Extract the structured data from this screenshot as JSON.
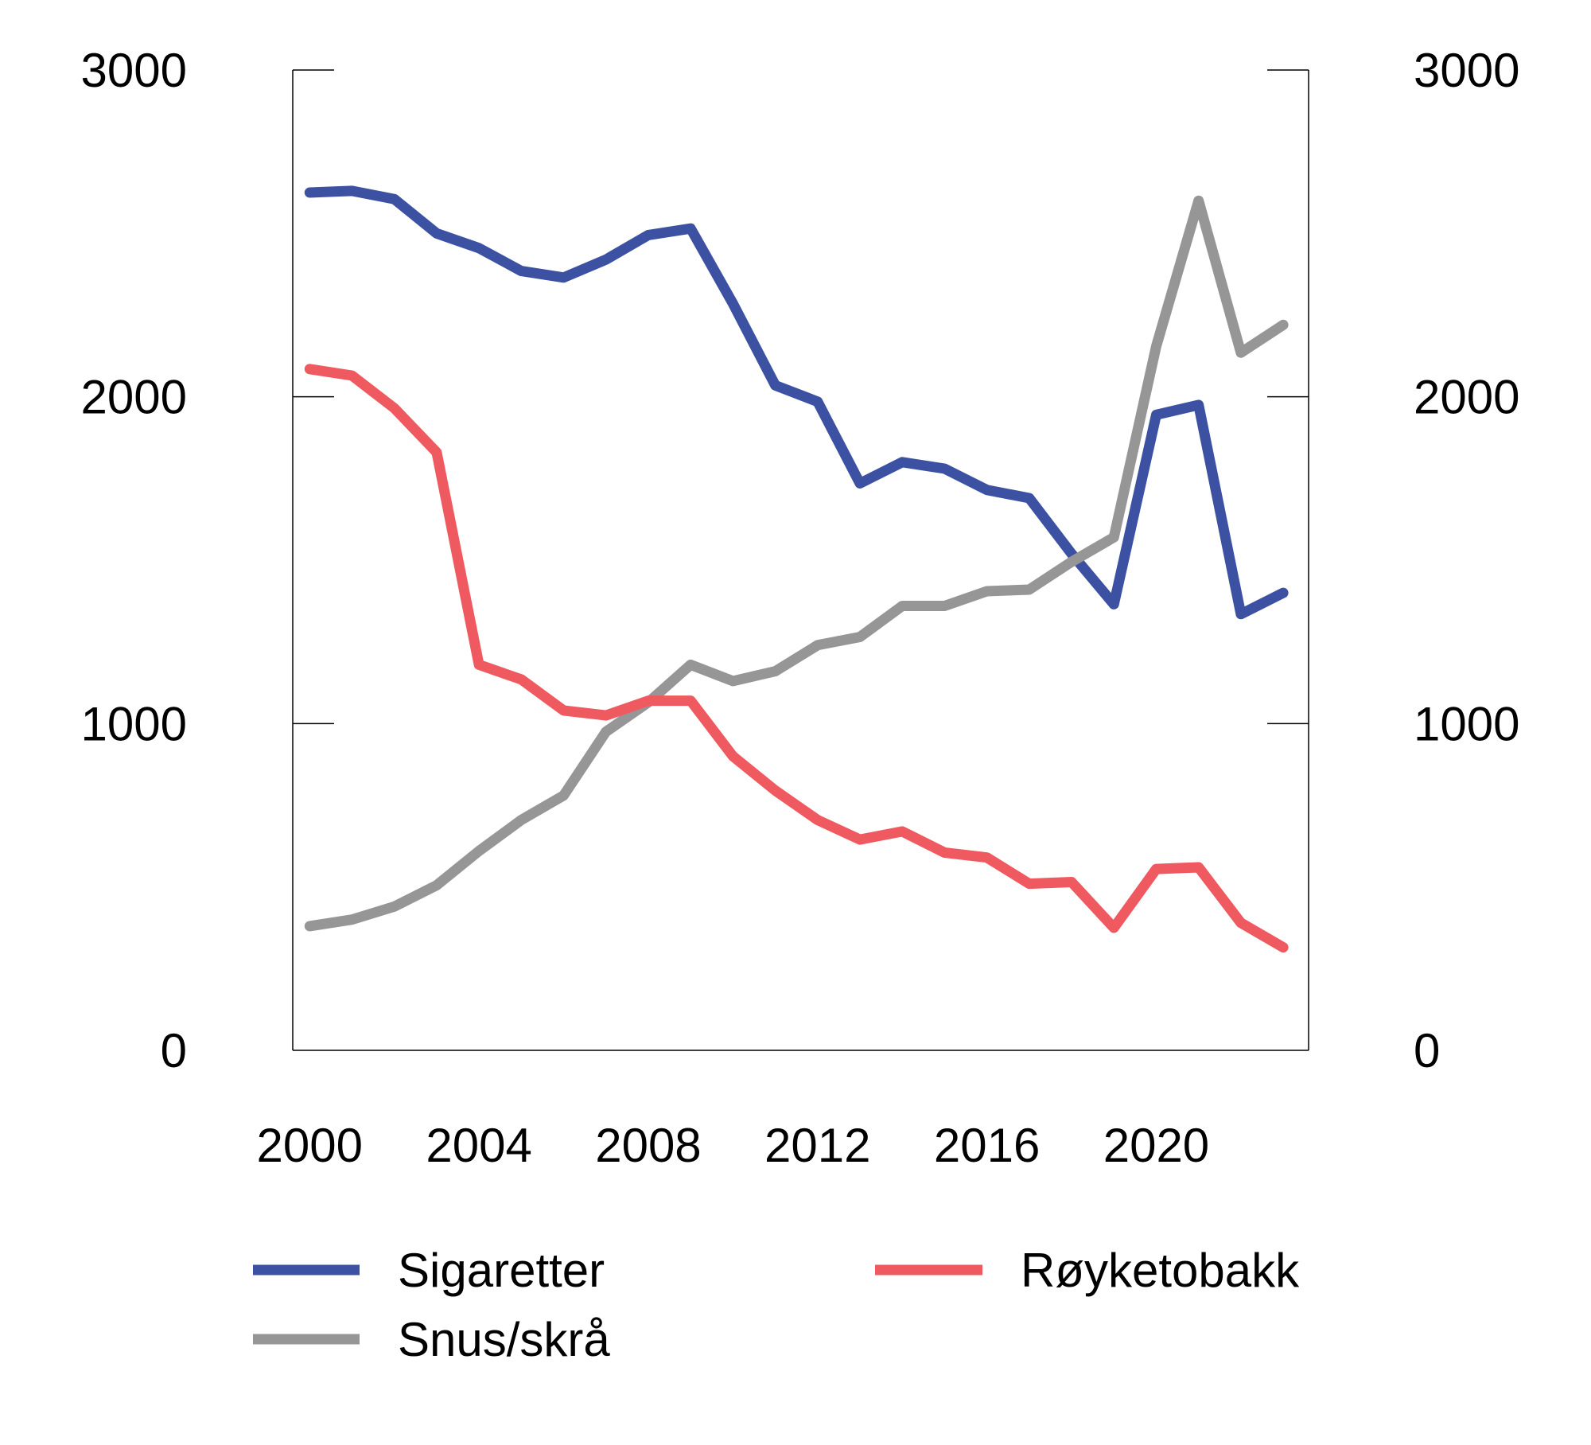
{
  "chart_data": {
    "type": "line",
    "title": "",
    "xlabel": "",
    "ylabel": "",
    "ylim": [
      0,
      3000
    ],
    "xlim": [
      1999.6,
      2023.6
    ],
    "y_ticks": [
      "0",
      "1000",
      "2000",
      "3000"
    ],
    "y_ticks_right": [
      "0",
      "1000",
      "2000",
      "3000"
    ],
    "x_ticks": [
      "2000",
      "2004",
      "2008",
      "2012",
      "2016",
      "2020"
    ],
    "grid": false,
    "legend_position": "bottom",
    "x": [
      2000,
      2001,
      2002,
      2003,
      2004,
      2005,
      2006,
      2007,
      2008,
      2009,
      2010,
      2011,
      2012,
      2013,
      2014,
      2015,
      2016,
      2017,
      2018,
      2019,
      2020,
      2021,
      2022,
      2023
    ],
    "series": [
      {
        "name": "Sigaretter",
        "color": "#3d51a3",
        "values": [
          2625,
          2630,
          2605,
          2500,
          2455,
          2385,
          2365,
          2420,
          2495,
          2515,
          2285,
          2035,
          1985,
          1735,
          1800,
          1780,
          1715,
          1690,
          1520,
          1365,
          1945,
          1975,
          1335,
          1400
        ]
      },
      {
        "name": "Snus/skrå",
        "color": "#969696",
        "values": [
          380,
          400,
          440,
          505,
          610,
          705,
          780,
          975,
          1065,
          1180,
          1130,
          1160,
          1240,
          1265,
          1360,
          1360,
          1405,
          1410,
          1495,
          1570,
          2155,
          2600,
          2135,
          2220
        ]
      },
      {
        "name": "Røyketobakk",
        "color": "#ee5a5f",
        "values": [
          2085,
          2065,
          1965,
          1830,
          1180,
          1135,
          1040,
          1025,
          1070,
          1070,
          900,
          795,
          705,
          645,
          670,
          605,
          590,
          510,
          515,
          375,
          555,
          560,
          390,
          315
        ]
      }
    ]
  }
}
